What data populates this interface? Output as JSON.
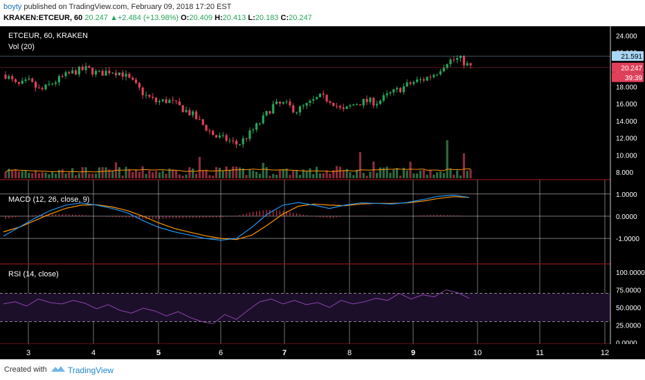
{
  "header": {
    "author": "boyty",
    "published_text": "published on TradingView.com, February 09, 2018 17:20 EST",
    "symbol": "KRAKEN:ETCEUR, 60",
    "last": "20.247",
    "change": "+2.484 (+13.98%)",
    "o_label": "O:",
    "o_value": "20.409",
    "h_label": "H:",
    "h_value": "20.413",
    "l_label": "L:",
    "l_value": "20.183",
    "c_label": "C:",
    "c_value": "20.247"
  },
  "footer": {
    "created_with": "Created with",
    "brand": "TradingView"
  },
  "colors": {
    "background": "#000000",
    "grid": "#ffffff",
    "up": "#26a65b",
    "down": "#e0405a",
    "macd_line": "#2196f3",
    "signal_line": "#ff9800",
    "rsi_line": "#8e44ad",
    "rsi_band": "#1c0f2a",
    "vol_ma": "#ff9800",
    "separator": "#8b1a1a"
  },
  "chart_data": [
    {
      "type": "candlestick",
      "title": "ETCEUR, 60, KRAKEN",
      "volume_label": "Vol (20)",
      "x_ticks": [
        "3",
        "4",
        "5",
        "6",
        "7",
        "8",
        "9",
        "10",
        "11",
        "12"
      ],
      "bold_ticks": [
        "5",
        "7",
        "9"
      ],
      "y_ticks": [
        "24.000",
        "22.000",
        "20.000",
        "18.000",
        "16.000",
        "14.000",
        "12.000",
        "10.000",
        "8.000"
      ],
      "ylim": [
        7.6,
        24.6
      ],
      "price_tags": [
        {
          "text": "21.591",
          "color": "#a9d6f5",
          "text_color": "#000000"
        },
        {
          "text": "20.247",
          "color": "#e0405a",
          "text_color": "#ffffff"
        },
        {
          "text": "39:39",
          "color": "#e0405a",
          "text_color": "#ffffff"
        }
      ],
      "close_series": [
        19.4,
        18.1,
        18.6,
        17.5,
        18.4,
        19.2,
        19.8,
        20.1,
        19.5,
        19.9,
        19.6,
        18.4,
        17.0,
        16.2,
        16.4,
        15.6,
        14.8,
        13.5,
        12.2,
        11.8,
        11.2,
        12.5,
        14.0,
        15.8,
        16.0,
        15.2,
        15.9,
        16.8,
        16.4,
        15.1,
        16.0,
        16.3,
        16.2,
        17.1,
        17.8,
        18.5,
        18.9,
        19.6,
        21.0,
        21.3,
        20.25
      ]
    },
    {
      "type": "line",
      "title": "MACD (12, 26, close, 9)",
      "y_ticks": [
        "1.0000",
        "0.0000",
        "-1.0000"
      ],
      "ylim": [
        -1.9,
        1.4
      ],
      "series": [
        {
          "values": [
            -0.9,
            -0.5,
            -0.1,
            0.25,
            0.5,
            0.6,
            0.5,
            0.35,
            0.15,
            -0.2,
            -0.5,
            -0.7,
            -0.85,
            -1.0,
            -1.08,
            -1.0,
            -0.5,
            0.1,
            0.5,
            0.62,
            0.5,
            0.35,
            0.5,
            0.6,
            0.58,
            0.55,
            0.62,
            0.75,
            0.9,
            0.95,
            0.85
          ]
        },
        {
          "values": [
            -0.7,
            -0.5,
            -0.2,
            0.1,
            0.35,
            0.5,
            0.52,
            0.42,
            0.25,
            0.0,
            -0.3,
            -0.55,
            -0.72,
            -0.88,
            -1.0,
            -1.05,
            -0.85,
            -0.4,
            0.1,
            0.45,
            0.55,
            0.5,
            0.48,
            0.55,
            0.58,
            0.58,
            0.6,
            0.68,
            0.8,
            0.88,
            0.85
          ]
        }
      ]
    },
    {
      "type": "line",
      "title": "RSI (14, close)",
      "y_ticks": [
        "100.0000",
        "75.0000",
        "50.0000",
        "25.0000",
        "0.0000"
      ],
      "ylim": [
        0,
        100
      ],
      "band": [
        30,
        70
      ],
      "series": [
        {
          "values": [
            55,
            58,
            52,
            62,
            57,
            55,
            60,
            56,
            48,
            54,
            46,
            42,
            49,
            45,
            38,
            44,
            36,
            30,
            27,
            40,
            33,
            46,
            58,
            62,
            55,
            60,
            54,
            57,
            50,
            60,
            55,
            58,
            63,
            60,
            70,
            62,
            68,
            65,
            75,
            71,
            63
          ]
        }
      ]
    }
  ]
}
